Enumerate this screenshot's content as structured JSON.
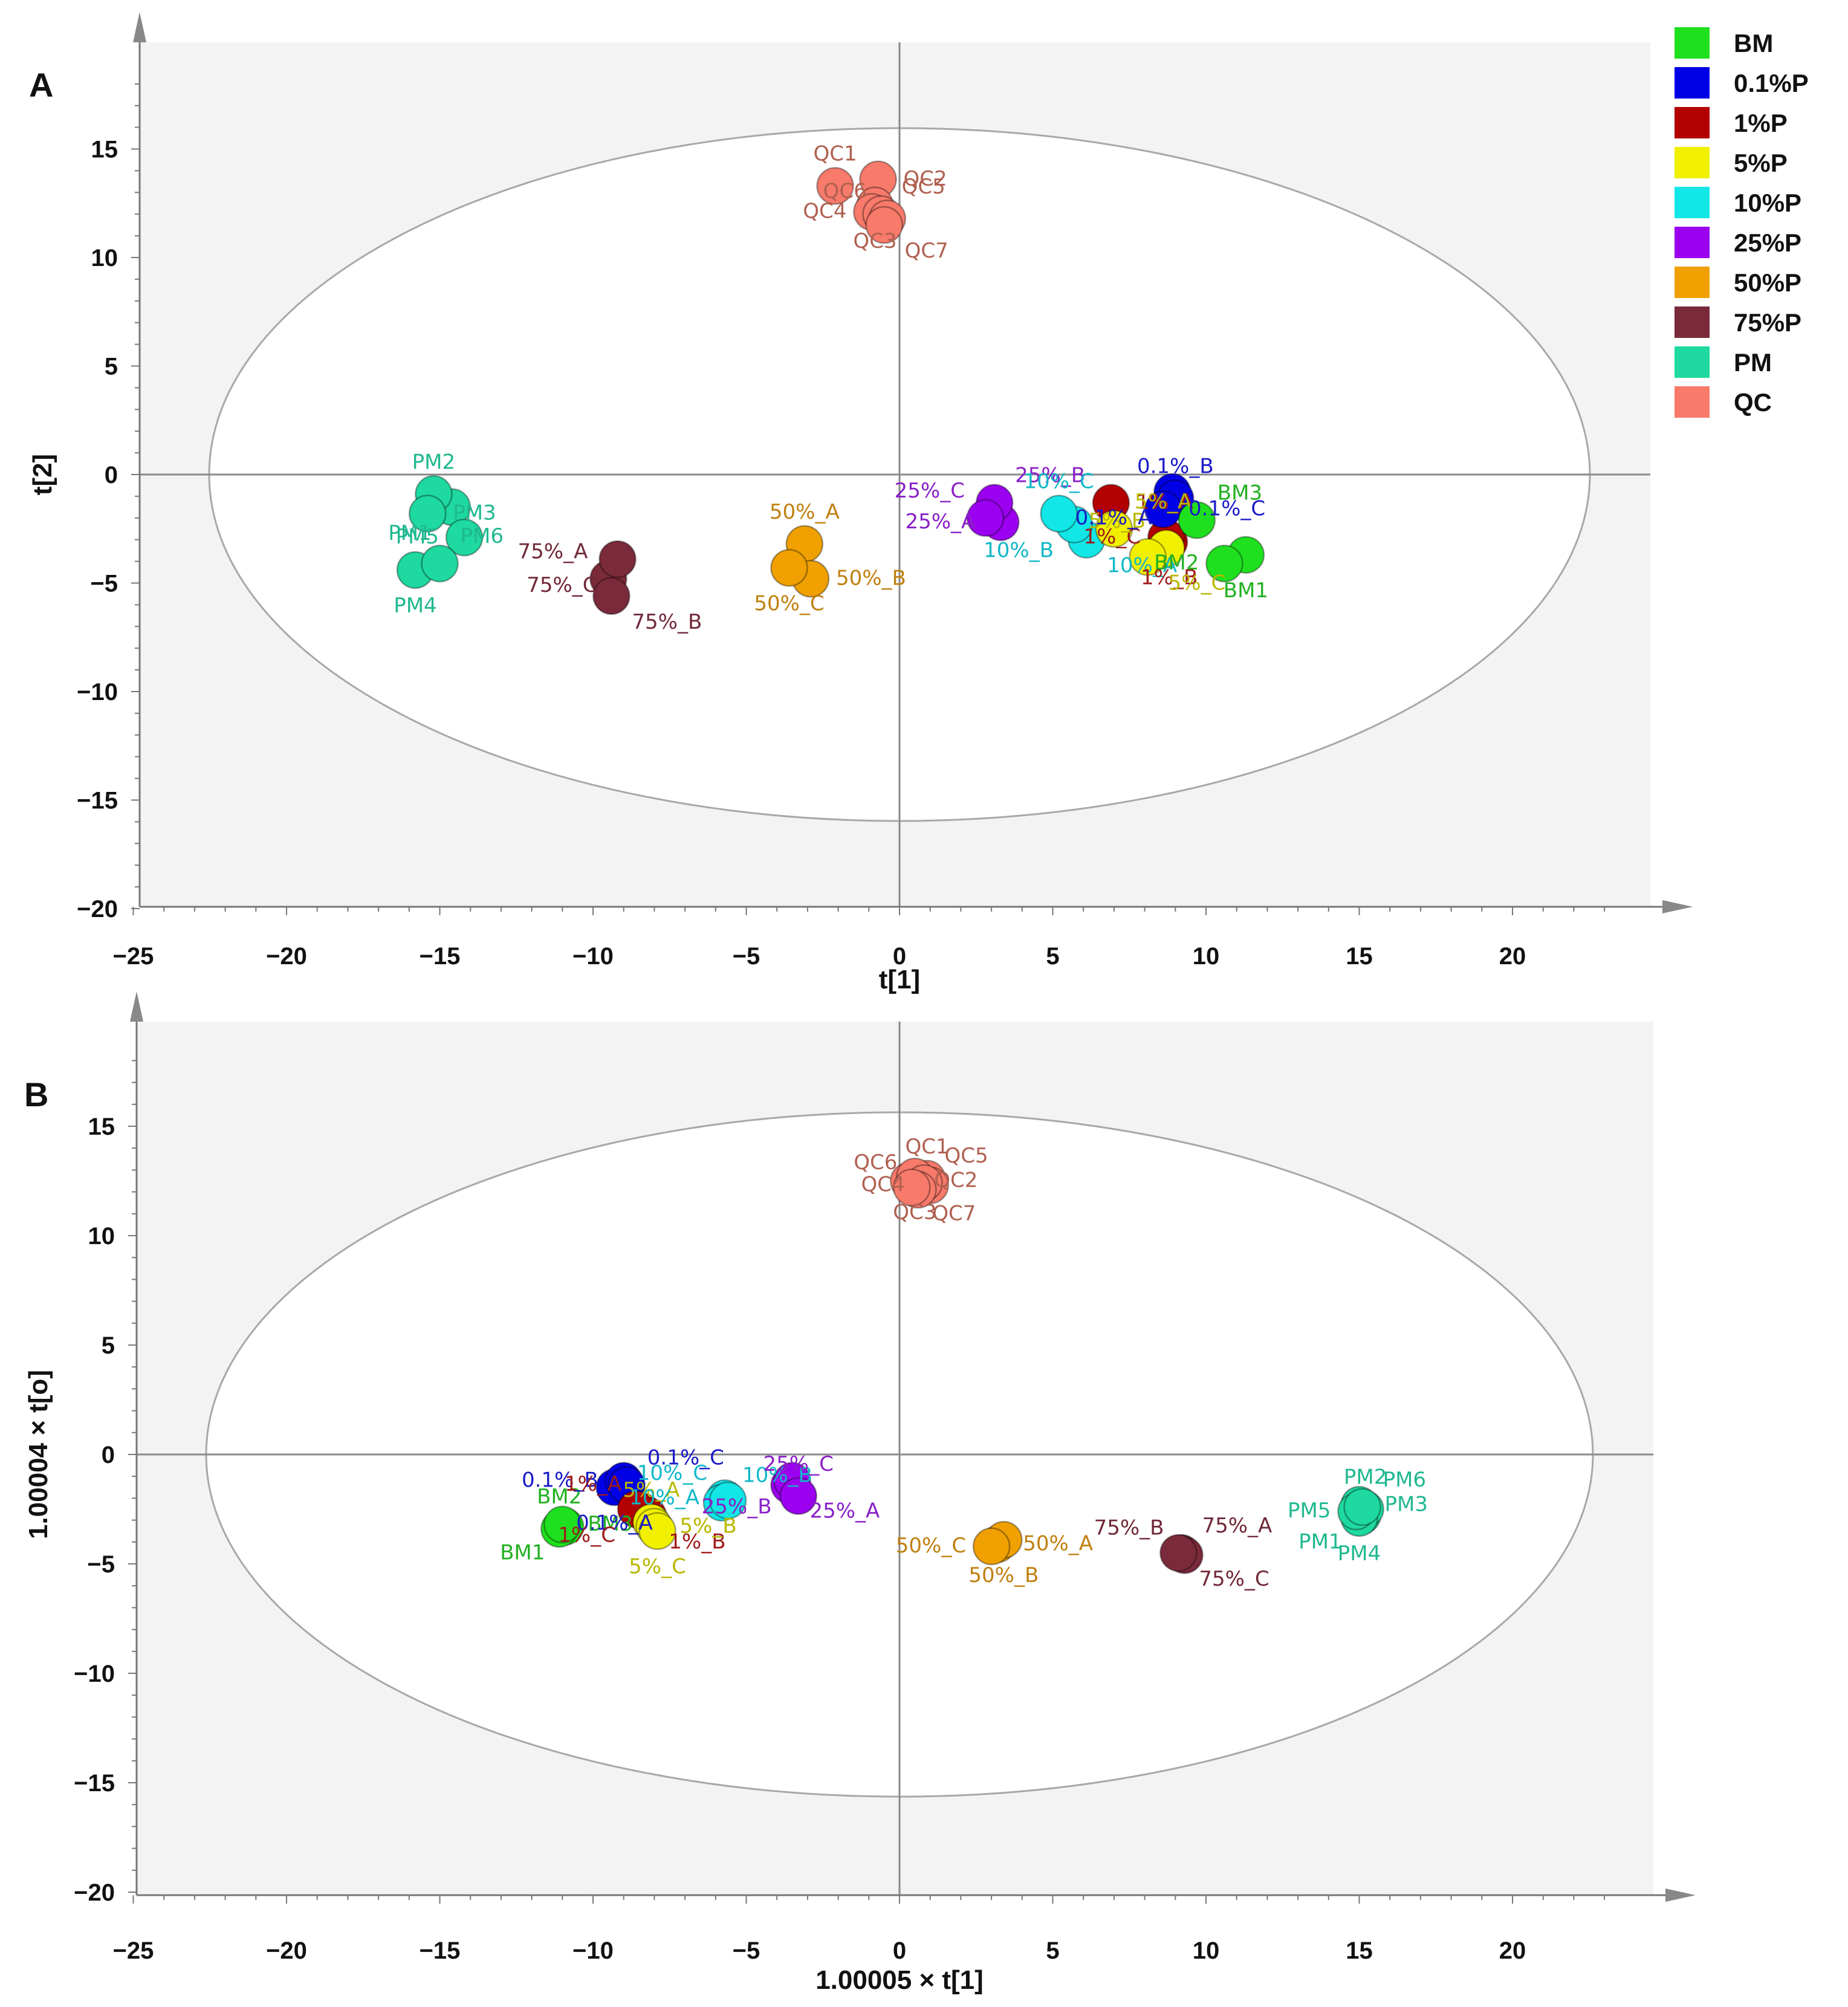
{
  "groups": [
    {
      "name": "BM",
      "color": "#1fe01f"
    },
    {
      "name": "0.1%P",
      "color": "#0000e6"
    },
    {
      "name": "1%P",
      "color": "#b30000"
    },
    {
      "name": "5%P",
      "color": "#f0f000"
    },
    {
      "name": "10%P",
      "color": "#12e6e6"
    },
    {
      "name": "25%P",
      "color": "#9b00f0"
    },
    {
      "name": "50%P",
      "color": "#f0a000"
    },
    {
      "name": "75%P",
      "color": "#7a2a3a"
    },
    {
      "name": "PM",
      "color": "#1ed9a0"
    },
    {
      "name": "QC",
      "color": "#f77a6a"
    }
  ],
  "label_colors": {
    "BM": "#22b022",
    "0.1%P": "#1a1ac8",
    "1%P": "#a01a1a",
    "5%P": "#b8b800",
    "10%P": "#10b8c8",
    "25%P": "#8a20c8",
    "50%P": "#c08010",
    "75%P": "#702838",
    "PM": "#20b890",
    "QC": "#b06050"
  },
  "chart_data": [
    {
      "panel": "A",
      "type": "scatter",
      "xlabel": "t[1]",
      "ylabel": "t[2]",
      "xlim": [
        -25,
        25
      ],
      "ylim": [
        -20,
        20
      ],
      "xticks": [
        -25,
        -20,
        -15,
        -10,
        -5,
        0,
        5,
        10,
        15,
        20
      ],
      "yticks": [
        15,
        10,
        5,
        0,
        -5,
        -10,
        -15,
        -20
      ],
      "points": [
        {
          "label": "QC1",
          "group": "QC",
          "x": -2.1,
          "y": 13.3
        },
        {
          "label": "QC2",
          "group": "QC",
          "x": -0.7,
          "y": 13.6
        },
        {
          "label": "QC3",
          "group": "QC",
          "x": -0.8,
          "y": 12.4
        },
        {
          "label": "QC4",
          "group": "QC",
          "x": -0.9,
          "y": 12.1
        },
        {
          "label": "QC5",
          "group": "QC",
          "x": -0.6,
          "y": 12.0
        },
        {
          "label": "QC6",
          "group": "QC",
          "x": -0.4,
          "y": 11.8
        },
        {
          "label": "QC7",
          "group": "QC",
          "x": -0.5,
          "y": 11.5
        },
        {
          "label": "PM1",
          "group": "PM",
          "x": -14.6,
          "y": -1.5
        },
        {
          "label": "PM2",
          "group": "PM",
          "x": -15.2,
          "y": -0.9
        },
        {
          "label": "PM3",
          "group": "PM",
          "x": -15.4,
          "y": -1.8
        },
        {
          "label": "PM4",
          "group": "PM",
          "x": -15.8,
          "y": -4.4
        },
        {
          "label": "PM5",
          "group": "PM",
          "x": -14.2,
          "y": -2.9
        },
        {
          "label": "PM6",
          "group": "PM",
          "x": -15.0,
          "y": -4.1
        },
        {
          "label": "75%_A",
          "group": "75%P",
          "x": -9.5,
          "y": -4.8
        },
        {
          "label": "75%_B",
          "group": "75%P",
          "x": -9.4,
          "y": -5.6
        },
        {
          "label": "75%_C",
          "group": "75%P",
          "x": -9.2,
          "y": -3.9
        },
        {
          "label": "50%_A",
          "group": "50%P",
          "x": -3.1,
          "y": -3.2
        },
        {
          "label": "50%_B",
          "group": "50%P",
          "x": -2.9,
          "y": -4.8
        },
        {
          "label": "50%_C",
          "group": "50%P",
          "x": -3.6,
          "y": -4.3
        },
        {
          "label": "25%_A",
          "group": "25%P",
          "x": 3.3,
          "y": -2.2
        },
        {
          "label": "25%_B",
          "group": "25%P",
          "x": 3.1,
          "y": -1.3
        },
        {
          "label": "25%_C",
          "group": "25%P",
          "x": 2.8,
          "y": -2.0
        },
        {
          "label": "10%_A",
          "group": "10%P",
          "x": 6.1,
          "y": -3.0
        },
        {
          "label": "10%_B",
          "group": "10%P",
          "x": 5.7,
          "y": -2.3
        },
        {
          "label": "10%_C",
          "group": "10%P",
          "x": 5.2,
          "y": -1.8
        },
        {
          "label": "1%_A",
          "group": "1%P",
          "x": 6.9,
          "y": -1.3
        },
        {
          "label": "1%_B",
          "group": "1%P",
          "x": 8.8,
          "y": -3.1
        },
        {
          "label": "1%_C",
          "group": "1%P",
          "x": 8.7,
          "y": -2.9
        },
        {
          "label": "5%_A",
          "group": "5%P",
          "x": 7.0,
          "y": -2.5
        },
        {
          "label": "5%_B",
          "group": "5%P",
          "x": 8.7,
          "y": -3.4
        },
        {
          "label": "5%_C",
          "group": "5%P",
          "x": 8.1,
          "y": -3.8
        },
        {
          "label": "0.1%_A",
          "group": "0.1%P",
          "x": 8.9,
          "y": -0.8
        },
        {
          "label": "0.1%_B",
          "group": "0.1%P",
          "x": 9.0,
          "y": -1.1
        },
        {
          "label": "0.1%_C",
          "group": "0.1%P",
          "x": 8.6,
          "y": -1.6
        },
        {
          "label": "BM1",
          "group": "BM",
          "x": 11.3,
          "y": -3.7
        },
        {
          "label": "BM2",
          "group": "BM",
          "x": 10.6,
          "y": -4.1
        },
        {
          "label": "BM3",
          "group": "BM",
          "x": 9.7,
          "y": -2.1
        }
      ]
    },
    {
      "panel": "B",
      "type": "scatter",
      "xlabel": "1.00005 × t[1]",
      "ylabel": "1.00004 × t[o]",
      "xlim": [
        -25,
        25
      ],
      "ylim": [
        -20,
        20
      ],
      "xticks": [
        -25,
        -20,
        -15,
        -10,
        -5,
        0,
        5,
        10,
        15,
        20
      ],
      "yticks": [
        15,
        10,
        5,
        0,
        -5,
        -10,
        -15,
        -20
      ],
      "points": [
        {
          "label": "QC1",
          "group": "QC",
          "x": 0.9,
          "y": 12.6
        },
        {
          "label": "QC2",
          "group": "QC",
          "x": 0.3,
          "y": 12.5
        },
        {
          "label": "QC3",
          "group": "QC",
          "x": 0.5,
          "y": 12.7
        },
        {
          "label": "QC4",
          "group": "QC",
          "x": 1.0,
          "y": 12.3
        },
        {
          "label": "QC5",
          "group": "QC",
          "x": 0.8,
          "y": 12.4
        },
        {
          "label": "QC6",
          "group": "QC",
          "x": 0.6,
          "y": 12.1
        },
        {
          "label": "QC7",
          "group": "QC",
          "x": 0.4,
          "y": 12.2
        },
        {
          "label": "BM1",
          "group": "BM",
          "x": -10.9,
          "y": -3.3
        },
        {
          "label": "BM2",
          "group": "BM",
          "x": -11.1,
          "y": -3.4
        },
        {
          "label": "BM3",
          "group": "BM",
          "x": -11.0,
          "y": -3.2
        },
        {
          "label": "0.1%_A",
          "group": "0.1%P",
          "x": -9.3,
          "y": -1.5
        },
        {
          "label": "0.1%_B",
          "group": "0.1%P",
          "x": -9.0,
          "y": -1.2
        },
        {
          "label": "0.1%_C",
          "group": "0.1%P",
          "x": -8.9,
          "y": -1.4
        },
        {
          "label": "1%_A",
          "group": "1%P",
          "x": -8.4,
          "y": -2.6
        },
        {
          "label": "1%_B",
          "group": "1%P",
          "x": -8.2,
          "y": -2.8
        },
        {
          "label": "1%_C",
          "group": "1%P",
          "x": -8.6,
          "y": -2.5
        },
        {
          "label": "5%_A",
          "group": "5%P",
          "x": -8.1,
          "y": -3.1
        },
        {
          "label": "5%_B",
          "group": "5%P",
          "x": -8.0,
          "y": -3.3
        },
        {
          "label": "5%_C",
          "group": "5%P",
          "x": -7.9,
          "y": -3.5
        },
        {
          "label": "10%_A",
          "group": "10%P",
          "x": -5.7,
          "y": -2.0
        },
        {
          "label": "10%_B",
          "group": "10%P",
          "x": -5.8,
          "y": -2.2
        },
        {
          "label": "10%_C",
          "group": "10%P",
          "x": -5.6,
          "y": -2.1
        },
        {
          "label": "25%_A",
          "group": "25%P",
          "x": -3.6,
          "y": -1.4
        },
        {
          "label": "25%_B",
          "group": "25%P",
          "x": -3.5,
          "y": -1.2
        },
        {
          "label": "25%_C",
          "group": "25%P",
          "x": -3.3,
          "y": -1.9
        },
        {
          "label": "50%_A",
          "group": "50%P",
          "x": 3.2,
          "y": -4.1
        },
        {
          "label": "50%_B",
          "group": "50%P",
          "x": 3.4,
          "y": -3.9
        },
        {
          "label": "50%_C",
          "group": "50%P",
          "x": 3.0,
          "y": -4.2
        },
        {
          "label": "75%_A",
          "group": "75%P",
          "x": 9.2,
          "y": -4.5
        },
        {
          "label": "75%_B",
          "group": "75%P",
          "x": 9.3,
          "y": -4.6
        },
        {
          "label": "75%_C",
          "group": "75%P",
          "x": 9.1,
          "y": -4.5
        },
        {
          "label": "PM1",
          "group": "PM",
          "x": 15.1,
          "y": -2.8
        },
        {
          "label": "PM2",
          "group": "PM",
          "x": 15.2,
          "y": -2.5
        },
        {
          "label": "PM3",
          "group": "PM",
          "x": 15.0,
          "y": -2.3
        },
        {
          "label": "PM4",
          "group": "PM",
          "x": 15.0,
          "y": -2.9
        },
        {
          "label": "PM5",
          "group": "PM",
          "x": 14.9,
          "y": -2.6
        },
        {
          "label": "PM6",
          "group": "PM",
          "x": 15.1,
          "y": -2.4
        }
      ]
    }
  ]
}
